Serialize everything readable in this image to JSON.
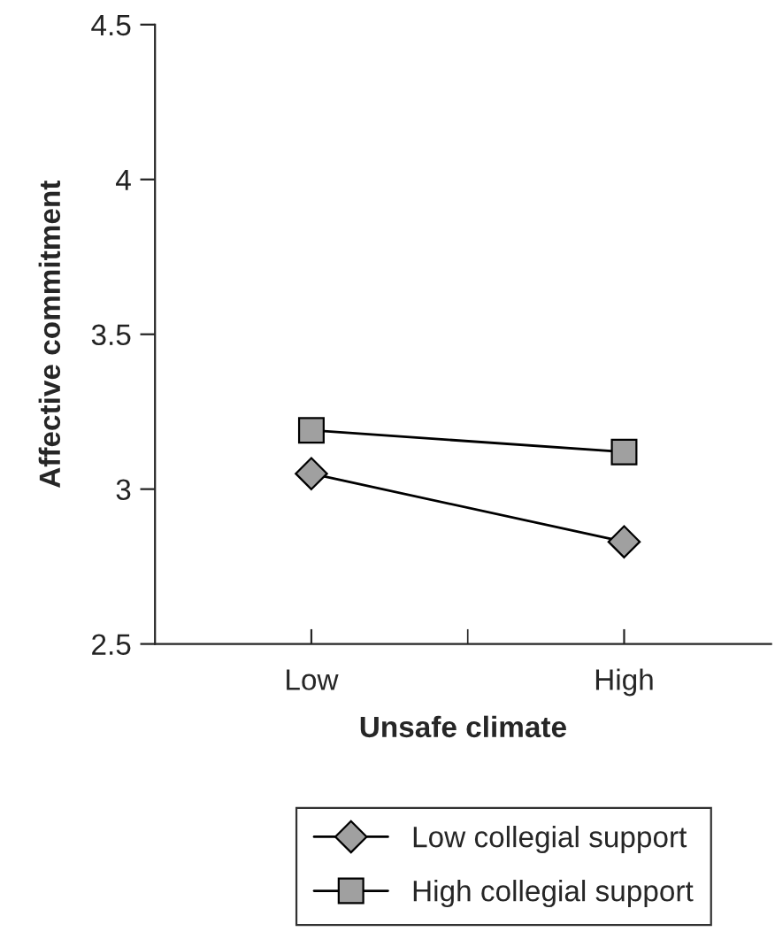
{
  "chart_data": {
    "type": "line",
    "xlabel": "Unsafe climate",
    "ylabel": "Affective commitment",
    "categories": [
      "Low",
      "High"
    ],
    "series": [
      {
        "name": "Low collegial support",
        "color": "#a0a0a0",
        "marker": "diamond",
        "values": [
          3.05,
          2.83
        ]
      },
      {
        "name": "High collegial support",
        "color": "#a0a0a0",
        "marker": "square",
        "values": [
          3.19,
          3.12
        ]
      }
    ],
    "ylim": [
      2.5,
      4.5
    ],
    "yticks": [
      2.5,
      3,
      3.5,
      4,
      4.5
    ],
    "grid": false,
    "legend": "bottom"
  }
}
